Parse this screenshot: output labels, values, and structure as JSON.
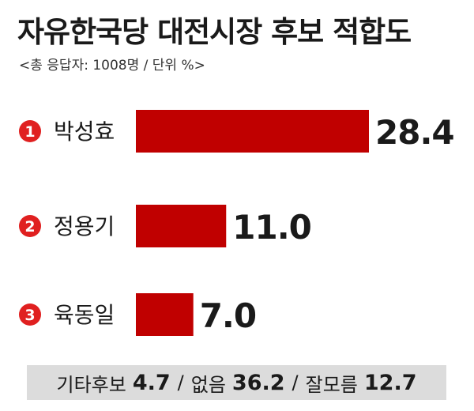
{
  "title": "자유한국당 대전시장 후보 적합도",
  "subtitle": "<총 응답자: 1008명 / 단위 %>",
  "colors": {
    "bar": "#c00000",
    "rank_badge": "#e02020",
    "footer_bg": "#dcdcdc"
  },
  "chart_data": {
    "type": "bar",
    "orientation": "horizontal",
    "title": "자유한국당 대전시장 후보 적합도",
    "subtitle": "<총 응답자: 1008명 / 단위 %>",
    "categories": [
      "박성효",
      "정용기",
      "육동일"
    ],
    "ranks": [
      "1",
      "2",
      "3"
    ],
    "values": [
      28.4,
      11.0,
      7.0
    ],
    "value_labels": [
      "28.4",
      "11.0",
      "7.0"
    ],
    "xlim": [
      0,
      28.4
    ],
    "grid": false,
    "legend": "none"
  },
  "footer": {
    "items": [
      {
        "label": "기타후보",
        "value": "4.7"
      },
      {
        "label": "없음",
        "value": "36.2"
      },
      {
        "label": "잘모름",
        "value": "12.7"
      }
    ],
    "separator": "/"
  }
}
